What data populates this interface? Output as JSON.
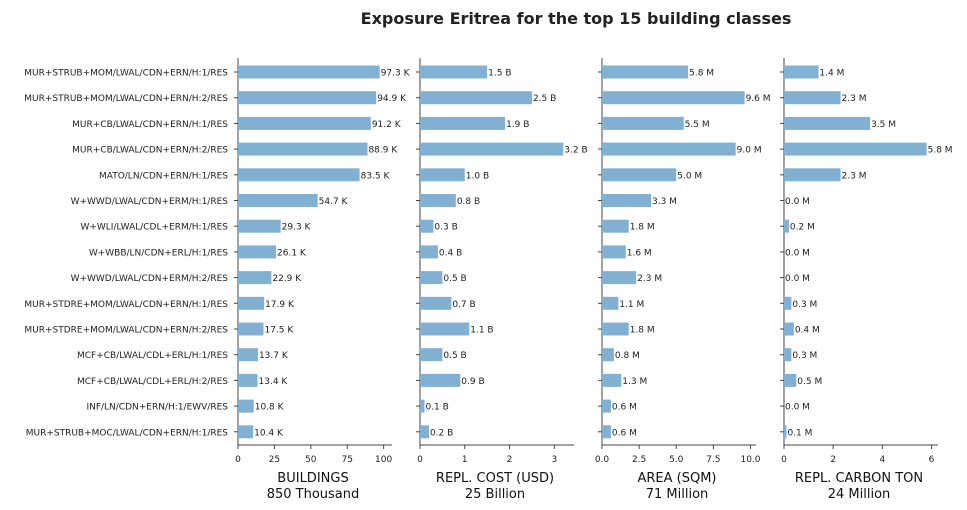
{
  "chart_data": {
    "type": "bar",
    "orientation": "horizontal",
    "title": "Exposure Eritrea for the top 15 building classes",
    "bar_color": "#82b0d2",
    "categories": [
      "MUR+STRUB+MOM/LWAL/CDN+ERN/H:1/RES",
      "MUR+STRUB+MOM/LWAL/CDN+ERN/H:2/RES",
      "MUR+CB/LWAL/CDN+ERN/H:1/RES",
      "MUR+CB/LWAL/CDN+ERN/H:2/RES",
      "MATO/LN/CDN+ERN/H:1/RES",
      "W+WWD/LWAL/CDN+ERM/H:1/RES",
      "W+WLI/LWAL/CDL+ERM/H:1/RES",
      "W+WBB/LN/CDN+ERL/H:1/RES",
      "W+WWD/LWAL/CDN+ERM/H:2/RES",
      "MUR+STDRE+MOM/LWAL/CDN+ERN/H:1/RES",
      "MUR+STDRE+MOM/LWAL/CDN+ERN/H:2/RES",
      "MCF+CB/LWAL/CDL+ERL/H:1/RES",
      "MCF+CB/LWAL/CDL+ERL/H:2/RES",
      "INF/LN/CDN+ERN/H:1/EWV/RES",
      "MUR+STRUB+MOC/LWAL/CDN+ERN/H:1/RES"
    ],
    "panels": [
      {
        "xlabel": "BUILDINGS",
        "total": "850 Thousand",
        "xlim": [
          0,
          103
        ],
        "ticks": [
          0,
          25,
          50,
          75,
          100
        ],
        "tick_labels": [
          "0",
          "25",
          "50",
          "75",
          "100"
        ],
        "values": [
          97.3,
          94.9,
          91.2,
          88.9,
          83.5,
          54.7,
          29.3,
          26.1,
          22.9,
          17.9,
          17.5,
          13.7,
          13.4,
          10.8,
          10.4
        ],
        "labels": [
          "97.3 K",
          "94.9 K",
          "91.2 K",
          "88.9 K",
          "83.5 K",
          "54.7 K",
          "29.3 K",
          "26.1 K",
          "22.9 K",
          "17.9 K",
          "17.5 K",
          "13.7 K",
          "13.4 K",
          "10.8 K",
          "10.4 K"
        ]
      },
      {
        "xlabel": "REPL. COST (USD)",
        "total": "25 Billion",
        "xlim": [
          0,
          3.35
        ],
        "ticks": [
          0,
          1,
          2,
          3
        ],
        "tick_labels": [
          "0",
          "1",
          "2",
          "3"
        ],
        "values": [
          1.5,
          2.5,
          1.9,
          3.2,
          1.0,
          0.8,
          0.3,
          0.4,
          0.5,
          0.7,
          1.1,
          0.5,
          0.9,
          0.1,
          0.2
        ],
        "labels": [
          "1.5 B",
          "2.5 B",
          "1.9 B",
          "3.2 B",
          "1.0 B",
          "0.8 B",
          "0.3 B",
          "0.4 B",
          "0.5 B",
          "0.7 B",
          "1.1 B",
          "0.5 B",
          "0.9 B",
          "0.1 B",
          "0.2 B"
        ]
      },
      {
        "xlabel": "AREA (SQM)",
        "total": "71 Million",
        "xlim": [
          0,
          10.1
        ],
        "ticks": [
          0,
          2.5,
          5,
          7.5,
          10
        ],
        "tick_labels": [
          "0.0",
          "2.5",
          "5.0",
          "7.5",
          "10.0"
        ],
        "values": [
          5.8,
          9.6,
          5.5,
          9.0,
          5.0,
          3.3,
          1.8,
          1.6,
          2.3,
          1.1,
          1.8,
          0.8,
          1.3,
          0.6,
          0.6
        ],
        "labels": [
          "5.8 M",
          "9.6 M",
          "5.5 M",
          "9.0 M",
          "5.0 M",
          "3.3 M",
          "1.8 M",
          "1.6 M",
          "2.3 M",
          "1.1 M",
          "1.8 M",
          "0.8 M",
          "1.3 M",
          "0.6 M",
          "0.6 M"
        ]
      },
      {
        "xlabel": "REPL. CARBON TON",
        "total": "24 Million",
        "xlim": [
          0,
          6.1
        ],
        "ticks": [
          0,
          2,
          4,
          6
        ],
        "tick_labels": [
          "0",
          "2",
          "4",
          "6"
        ],
        "values": [
          1.4,
          2.3,
          3.5,
          5.8,
          2.3,
          0.0,
          0.2,
          0.0,
          0.0,
          0.3,
          0.4,
          0.3,
          0.5,
          0.0,
          0.1
        ],
        "labels": [
          "1.4 M",
          "2.3 M",
          "3.5 M",
          "5.8 M",
          "2.3 M",
          "0.0 M",
          "0.2 M",
          "0.0 M",
          "0.0 M",
          "0.3 M",
          "0.4 M",
          "0.3 M",
          "0.5 M",
          "0.0 M",
          "0.1 M"
        ]
      }
    ]
  }
}
